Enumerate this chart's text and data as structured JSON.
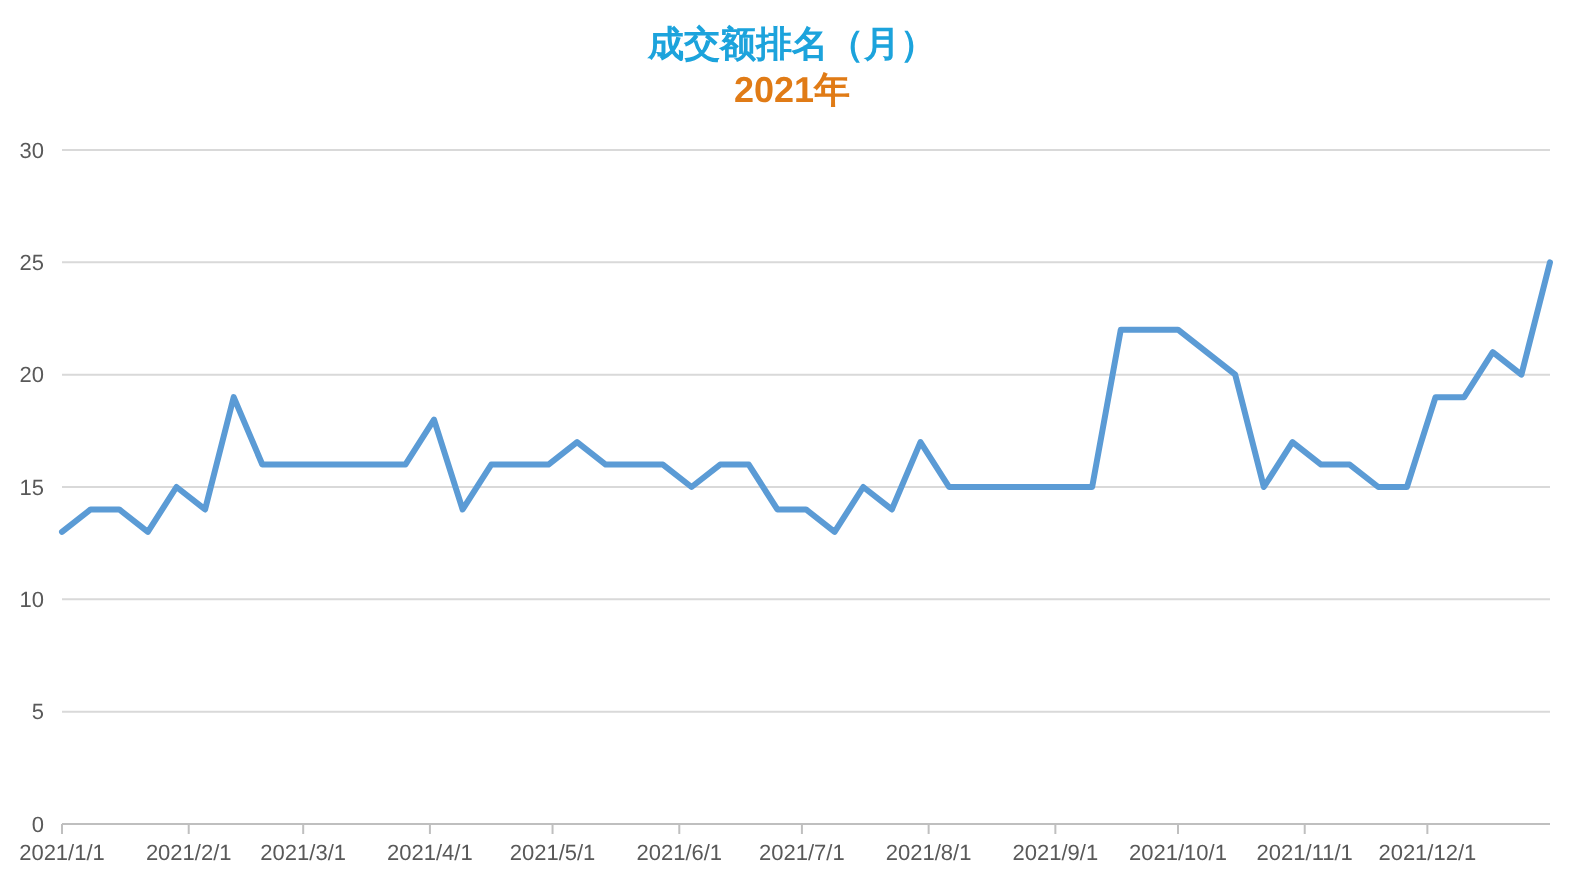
{
  "chart_data": {
    "type": "line",
    "title": "成交额排名（月）",
    "subtitle": "2021年",
    "x": [
      "2021-01-01",
      "2021-01-08",
      "2021-01-15",
      "2021-01-22",
      "2021-01-29",
      "2021-02-05",
      "2021-02-12",
      "2021-02-19",
      "2021-02-26",
      "2021-03-05",
      "2021-03-12",
      "2021-03-19",
      "2021-03-26",
      "2021-04-02",
      "2021-04-09",
      "2021-04-16",
      "2021-04-23",
      "2021-04-30",
      "2021-05-07",
      "2021-05-14",
      "2021-05-21",
      "2021-05-28",
      "2021-06-04",
      "2021-06-11",
      "2021-06-18",
      "2021-06-25",
      "2021-07-02",
      "2021-07-09",
      "2021-07-16",
      "2021-07-23",
      "2021-07-30",
      "2021-08-06",
      "2021-08-13",
      "2021-08-20",
      "2021-08-27",
      "2021-09-03",
      "2021-09-10",
      "2021-09-17",
      "2021-09-24",
      "2021-10-01",
      "2021-10-08",
      "2021-10-15",
      "2021-10-22",
      "2021-10-29",
      "2021-11-05",
      "2021-11-12",
      "2021-11-19",
      "2021-11-26",
      "2021-12-03",
      "2021-12-10",
      "2021-12-17",
      "2021-12-24",
      "2021-12-31"
    ],
    "series": [
      {
        "color": "#5b9bd5",
        "values": [
          13,
          14,
          14,
          13,
          15,
          14,
          19,
          16,
          16,
          16,
          16,
          16,
          16,
          18,
          14,
          16,
          16,
          16,
          17,
          16,
          16,
          16,
          15,
          16,
          16,
          14,
          14,
          13,
          15,
          14,
          17,
          15,
          15,
          15,
          15,
          15,
          15,
          22,
          22,
          22,
          21,
          20,
          15,
          17,
          16,
          16,
          15,
          15,
          19,
          19,
          21,
          20,
          25
        ]
      }
    ],
    "xlim": [
      "2021-01-01",
      "2021-12-31"
    ],
    "xticks": [
      {
        "value": "2021-01-01",
        "label": "2021/1/1"
      },
      {
        "value": "2021-02-01",
        "label": "2021/2/1"
      },
      {
        "value": "2021-03-01",
        "label": "2021/3/1"
      },
      {
        "value": "2021-04-01",
        "label": "2021/4/1"
      },
      {
        "value": "2021-05-01",
        "label": "2021/5/1"
      },
      {
        "value": "2021-06-01",
        "label": "2021/6/1"
      },
      {
        "value": "2021-07-01",
        "label": "2021/7/1"
      },
      {
        "value": "2021-08-01",
        "label": "2021/8/1"
      },
      {
        "value": "2021-09-01",
        "label": "2021/9/1"
      },
      {
        "value": "2021-10-01",
        "label": "2021/10/1"
      },
      {
        "value": "2021-11-01",
        "label": "2021/11/1"
      },
      {
        "value": "2021-12-01",
        "label": "2021/12/1"
      }
    ],
    "ylim": [
      0,
      30
    ],
    "yticks": [
      0,
      5,
      10,
      15,
      20,
      25,
      30
    ],
    "grid": "y",
    "marker": "none",
    "line_style": "solid"
  }
}
